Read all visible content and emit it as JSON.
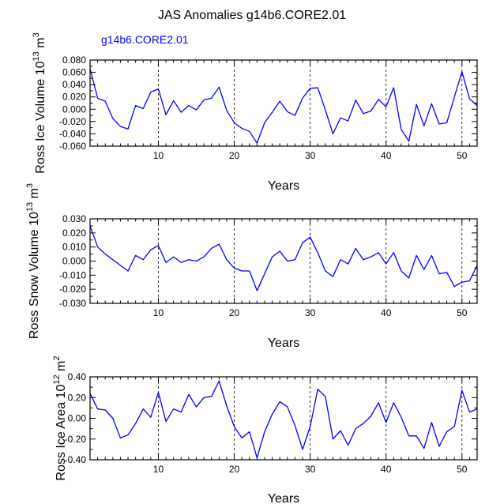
{
  "figure": {
    "title": "JAS Anomalies g14b6.CORE2.01",
    "legend_label": "g14b6.CORE2.01",
    "legend_color": "#0000ff"
  },
  "chart_data": [
    {
      "type": "line",
      "title": "",
      "xlabel": "Years",
      "ylabel": "Ross Ice Volume 10¹³ m³",
      "ylabel_base": "Ross Ice Volume 10",
      "ylabel_exp": "13",
      "ylabel_unit": " m",
      "ylabel_unit_exp": "3",
      "xlim": [
        1,
        52
      ],
      "ylim": [
        -0.06,
        0.08
      ],
      "xticks": [
        10,
        20,
        30,
        40,
        50
      ],
      "yticks": [
        -0.06,
        -0.04,
        -0.02,
        0.0,
        0.02,
        0.04,
        0.06,
        0.08
      ],
      "yticklabels": [
        "-0.060",
        "-0.040",
        "-0.020",
        "0.000",
        "0.020",
        "0.040",
        "0.060",
        "0.080"
      ],
      "grid": "dashed vertical at x ticks",
      "series": [
        {
          "name": "g14b6.CORE2.01",
          "color": "#0000ff",
          "x": [
            1,
            2,
            3,
            4,
            5,
            6,
            7,
            8,
            9,
            10,
            11,
            12,
            13,
            14,
            15,
            16,
            17,
            18,
            19,
            20,
            21,
            22,
            23,
            24,
            25,
            26,
            27,
            28,
            29,
            30,
            31,
            32,
            33,
            34,
            35,
            36,
            37,
            38,
            39,
            40,
            41,
            42,
            43,
            44,
            45,
            46,
            47,
            48,
            49,
            50,
            51,
            52
          ],
          "y": [
            0.066,
            0.018,
            0.013,
            -0.015,
            -0.028,
            -0.032,
            0.006,
            0.001,
            0.028,
            0.033,
            -0.009,
            0.014,
            -0.005,
            0.006,
            -0.001,
            0.015,
            0.018,
            0.036,
            -0.002,
            -0.022,
            -0.031,
            -0.036,
            -0.055,
            -0.022,
            -0.005,
            0.013,
            -0.004,
            -0.01,
            0.018,
            0.034,
            0.035,
            -0.001,
            -0.04,
            -0.014,
            -0.019,
            0.015,
            -0.007,
            -0.003,
            0.016,
            0.004,
            0.035,
            -0.033,
            -0.052,
            0.008,
            -0.027,
            0.009,
            -0.024,
            -0.022,
            0.02,
            0.061,
            0.017,
            0.006
          ]
        }
      ]
    },
    {
      "type": "line",
      "title": "",
      "xlabel": "Years",
      "ylabel": "Ross Snow Volume 10¹³ m³",
      "ylabel_base": "Ross Snow Volume 10",
      "ylabel_exp": "13",
      "ylabel_unit": " m",
      "ylabel_unit_exp": "3",
      "xlim": [
        1,
        52
      ],
      "ylim": [
        -0.03,
        0.03
      ],
      "xticks": [
        10,
        20,
        30,
        40,
        50
      ],
      "yticks": [
        -0.03,
        -0.02,
        -0.01,
        0.0,
        0.01,
        0.02,
        0.03
      ],
      "yticklabels": [
        "-0.030",
        "-0.020",
        "-0.010",
        "0.000",
        "0.010",
        "0.020",
        "0.030"
      ],
      "grid": "dashed vertical at x ticks",
      "series": [
        {
          "name": "g14b6.CORE2.01",
          "color": "#0000ff",
          "x": [
            1,
            2,
            3,
            4,
            5,
            6,
            7,
            8,
            9,
            10,
            11,
            12,
            13,
            14,
            15,
            16,
            17,
            18,
            19,
            20,
            21,
            22,
            23,
            24,
            25,
            26,
            27,
            28,
            29,
            30,
            31,
            32,
            33,
            34,
            35,
            36,
            37,
            38,
            39,
            40,
            41,
            42,
            43,
            44,
            45,
            46,
            47,
            48,
            49,
            50,
            51,
            52
          ],
          "y": [
            0.025,
            0.01,
            0.005,
            0.001,
            -0.003,
            -0.007,
            0.004,
            0.001,
            0.008,
            0.011,
            -0.001,
            0.003,
            -0.001,
            0.001,
            0.0,
            0.003,
            0.009,
            0.012,
            0.001,
            -0.005,
            -0.007,
            -0.007,
            -0.021,
            -0.009,
            0.003,
            0.007,
            0.0,
            0.001,
            0.013,
            0.017,
            0.006,
            -0.007,
            -0.011,
            0.001,
            -0.002,
            0.009,
            0.001,
            0.003,
            0.006,
            -0.002,
            0.006,
            -0.007,
            -0.012,
            0.004,
            -0.006,
            0.004,
            -0.009,
            -0.008,
            -0.018,
            -0.015,
            -0.014,
            -0.003
          ]
        }
      ]
    },
    {
      "type": "line",
      "title": "",
      "xlabel": "Years",
      "ylabel": "Ross Ice Area 10¹² m²",
      "ylabel_base": "Ross Ice Area 10",
      "ylabel_exp": "12",
      "ylabel_unit": " m",
      "ylabel_unit_exp": "2",
      "xlim": [
        1,
        52
      ],
      "ylim": [
        -0.4,
        0.4
      ],
      "xticks": [
        10,
        20,
        30,
        40,
        50
      ],
      "yticks": [
        -0.4,
        -0.2,
        0.0,
        0.2,
        0.4
      ],
      "yticklabels": [
        "-0.40",
        "-0.20",
        "0.00",
        "0.20",
        "0.40"
      ],
      "grid": "dashed vertical at x ticks",
      "series": [
        {
          "name": "g14b6.CORE2.01",
          "color": "#0000ff",
          "x": [
            1,
            2,
            3,
            4,
            5,
            6,
            7,
            8,
            9,
            10,
            11,
            12,
            13,
            14,
            15,
            16,
            17,
            18,
            19,
            20,
            21,
            22,
            23,
            24,
            25,
            26,
            27,
            28,
            29,
            30,
            31,
            32,
            33,
            34,
            35,
            36,
            37,
            38,
            39,
            40,
            41,
            42,
            43,
            44,
            45,
            46,
            47,
            48,
            49,
            50,
            51,
            52
          ],
          "y": [
            0.24,
            0.09,
            0.08,
            0.0,
            -0.19,
            -0.16,
            -0.05,
            0.09,
            0.01,
            0.25,
            -0.03,
            0.09,
            0.06,
            0.23,
            0.11,
            0.2,
            0.21,
            0.36,
            0.12,
            -0.08,
            -0.19,
            -0.13,
            -0.38,
            -0.13,
            0.04,
            0.16,
            0.11,
            -0.07,
            -0.3,
            -0.08,
            0.28,
            0.21,
            -0.2,
            -0.12,
            -0.26,
            -0.1,
            -0.05,
            0.02,
            0.15,
            -0.04,
            0.15,
            0.01,
            -0.17,
            -0.17,
            -0.29,
            -0.04,
            -0.27,
            -0.13,
            -0.08,
            0.27,
            0.06,
            0.09
          ]
        }
      ]
    }
  ]
}
